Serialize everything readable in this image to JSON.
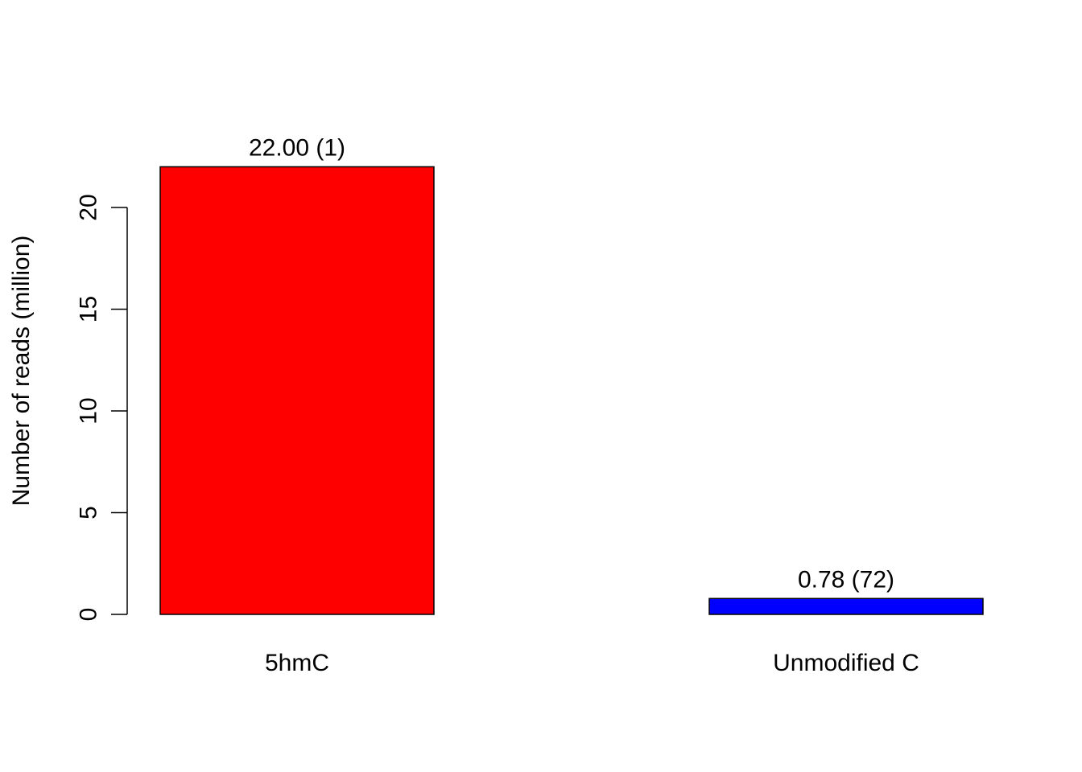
{
  "chart_data": {
    "type": "bar",
    "categories": [
      "5hmC",
      "Unmodified C"
    ],
    "values": [
      22.0,
      0.78
    ],
    "bar_labels": [
      "22.00 (1)",
      "0.78 (72)"
    ],
    "colors": [
      "#ff0000",
      "#0000ff"
    ],
    "ylabel": "Number of reads (million)",
    "xlabel": "",
    "title": "",
    "y_ticks": [
      0,
      5,
      10,
      15,
      20
    ],
    "y_tick_labels": [
      "0",
      "5",
      "10",
      "15",
      "20"
    ],
    "ylim": [
      0,
      22
    ],
    "grid": false,
    "legend": "none"
  }
}
